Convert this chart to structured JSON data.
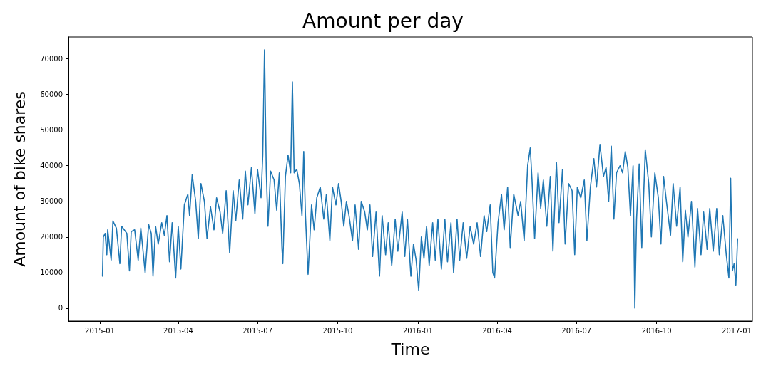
{
  "chart_data": {
    "type": "line",
    "title": "Amount per day",
    "xlabel": "Time",
    "ylabel": "Amount of bike shares",
    "x": [
      "2015-01-04",
      "2015-01-05",
      "2015-01-07",
      "2015-01-09",
      "2015-01-10",
      "2015-01-14",
      "2015-01-16",
      "2015-01-20",
      "2015-01-24",
      "2015-01-26",
      "2015-02-01",
      "2015-02-04",
      "2015-02-06",
      "2015-02-10",
      "2015-02-14",
      "2015-02-17",
      "2015-02-22",
      "2015-02-26",
      "2015-03-01",
      "2015-03-03",
      "2015-03-06",
      "2015-03-09",
      "2015-03-13",
      "2015-03-16",
      "2015-03-19",
      "2015-03-22",
      "2015-03-25",
      "2015-03-29",
      "2015-04-01",
      "2015-04-04",
      "2015-04-08",
      "2015-04-12",
      "2015-04-14",
      "2015-04-17",
      "2015-04-21",
      "2015-04-24",
      "2015-04-27",
      "2015-05-01",
      "2015-05-04",
      "2015-05-08",
      "2015-05-12",
      "2015-05-15",
      "2015-05-19",
      "2015-05-22",
      "2015-05-26",
      "2015-05-30",
      "2015-06-03",
      "2015-06-06",
      "2015-06-10",
      "2015-06-14",
      "2015-06-17",
      "2015-06-20",
      "2015-06-24",
      "2015-06-28",
      "2015-07-01",
      "2015-07-05",
      "2015-07-07",
      "2015-07-09",
      "2015-07-11",
      "2015-07-13",
      "2015-07-16",
      "2015-07-20",
      "2015-07-23",
      "2015-07-26",
      "2015-07-29",
      "2015-07-30",
      "2015-08-02",
      "2015-08-05",
      "2015-08-08",
      "2015-08-10",
      "2015-08-12",
      "2015-08-15",
      "2015-08-18",
      "2015-08-21",
      "2015-08-23",
      "2015-08-25",
      "2015-08-28",
      "2015-09-01",
      "2015-09-04",
      "2015-09-07",
      "2015-09-11",
      "2015-09-15",
      "2015-09-18",
      "2015-09-22",
      "2015-09-25",
      "2015-09-29",
      "2015-10-02",
      "2015-10-05",
      "2015-10-08",
      "2015-10-11",
      "2015-10-14",
      "2015-10-18",
      "2015-10-21",
      "2015-10-25",
      "2015-10-28",
      "2015-11-01",
      "2015-11-04",
      "2015-11-07",
      "2015-11-10",
      "2015-11-14",
      "2015-11-18",
      "2015-11-21",
      "2015-11-25",
      "2015-11-28",
      "2015-12-02",
      "2015-12-06",
      "2015-12-09",
      "2015-12-14",
      "2015-12-17",
      "2015-12-20",
      "2015-12-24",
      "2015-12-27",
      "2015-12-30",
      "2016-01-02",
      "2016-01-05",
      "2016-01-08",
      "2016-01-11",
      "2016-01-14",
      "2016-01-18",
      "2016-01-21",
      "2016-01-24",
      "2016-01-28",
      "2016-02-01",
      "2016-02-04",
      "2016-02-08",
      "2016-02-11",
      "2016-02-15",
      "2016-02-18",
      "2016-02-22",
      "2016-02-26",
      "2016-03-01",
      "2016-03-05",
      "2016-03-09",
      "2016-03-13",
      "2016-03-17",
      "2016-03-20",
      "2016-03-24",
      "2016-03-27",
      "2016-03-29",
      "2016-04-02",
      "2016-04-06",
      "2016-04-09",
      "2016-04-13",
      "2016-04-16",
      "2016-04-20",
      "2016-04-25",
      "2016-04-28",
      "2016-05-02",
      "2016-05-06",
      "2016-05-09",
      "2016-05-11",
      "2016-05-14",
      "2016-05-18",
      "2016-05-21",
      "2016-05-24",
      "2016-05-28",
      "2016-06-01",
      "2016-06-04",
      "2016-06-08",
      "2016-06-11",
      "2016-06-15",
      "2016-06-18",
      "2016-06-22",
      "2016-06-26",
      "2016-06-29",
      "2016-07-02",
      "2016-07-06",
      "2016-07-10",
      "2016-07-13",
      "2016-07-17",
      "2016-07-21",
      "2016-07-24",
      "2016-07-28",
      "2016-08-01",
      "2016-08-04",
      "2016-08-07",
      "2016-08-10",
      "2016-08-13",
      "2016-08-16",
      "2016-08-20",
      "2016-08-23",
      "2016-08-26",
      "2016-08-29",
      "2016-09-01",
      "2016-09-04",
      "2016-09-06",
      "2016-09-08",
      "2016-09-11",
      "2016-09-14",
      "2016-09-18",
      "2016-09-22",
      "2016-09-25",
      "2016-09-29",
      "2016-10-03",
      "2016-10-06",
      "2016-10-09",
      "2016-10-13",
      "2016-10-17",
      "2016-10-20",
      "2016-10-24",
      "2016-10-28",
      "2016-10-31",
      "2016-11-03",
      "2016-11-06",
      "2016-11-10",
      "2016-11-14",
      "2016-11-17",
      "2016-11-21",
      "2016-11-24",
      "2016-11-28",
      "2016-12-01",
      "2016-12-05",
      "2016-12-09",
      "2016-12-12",
      "2016-12-16",
      "2016-12-20",
      "2016-12-23",
      "2016-12-25",
      "2016-12-27",
      "2016-12-29",
      "2016-12-31",
      "2017-01-02"
    ],
    "series": [
      {
        "color": "#1f77b4",
        "values": [
          9000,
          20000,
          21000,
          15000,
          22000,
          13500,
          24500,
          22500,
          12500,
          23000,
          21000,
          10500,
          21500,
          22000,
          13500,
          22500,
          10000,
          23500,
          21000,
          9000,
          23000,
          18000,
          24000,
          20500,
          26000,
          13000,
          24000,
          8500,
          23000,
          11000,
          29000,
          32000,
          26000,
          37500,
          30000,
          19500,
          35000,
          30000,
          19500,
          28500,
          22000,
          31000,
          27000,
          21000,
          33000,
          15500,
          33000,
          24500,
          36000,
          25000,
          38500,
          29000,
          39500,
          26500,
          39000,
          31000,
          43000,
          72500,
          39000,
          23000,
          38500,
          36000,
          27500,
          38000,
          17000,
          12500,
          37000,
          43000,
          38000,
          63500,
          38000,
          39000,
          35000,
          26000,
          44000,
          26000,
          9500,
          29000,
          22000,
          31000,
          34000,
          25000,
          32000,
          19000,
          34000,
          29000,
          35000,
          30000,
          23000,
          30000,
          26000,
          19000,
          29000,
          16500,
          30000,
          27000,
          22000,
          29000,
          14500,
          27000,
          9000,
          26000,
          15000,
          24000,
          12000,
          25000,
          16000,
          27000,
          14500,
          25000,
          9000,
          18000,
          13500,
          5000,
          20000,
          14000,
          23000,
          12000,
          24000,
          13500,
          25000,
          11000,
          25000,
          13000,
          24000,
          10000,
          25000,
          13500,
          24000,
          14000,
          23000,
          18000,
          24000,
          14500,
          26000,
          21500,
          29000,
          10000,
          8500,
          24000,
          32000,
          22000,
          34000,
          17000,
          32000,
          26000,
          30000,
          19000,
          40000,
          45000,
          36000,
          19500,
          38000,
          28000,
          36000,
          23000,
          37000,
          16000,
          41000,
          24000,
          39000,
          18000,
          35000,
          33000,
          15000,
          34000,
          31000,
          36000,
          19000,
          34000,
          42000,
          34000,
          46000,
          37000,
          39500,
          30000,
          45500,
          25000,
          38000,
          40000,
          38000,
          44000,
          39500,
          26000,
          40000,
          0,
          25000,
          40500,
          17000,
          44500,
          35000,
          20000,
          38000,
          31000,
          18000,
          37000,
          28500,
          20500,
          35000,
          23000,
          34000,
          13000,
          27500,
          20000,
          30000,
          11500,
          28000,
          15000,
          27000,
          16500,
          28000,
          16000,
          28000,
          15000,
          26000,
          15000,
          8500,
          36500,
          10500,
          12500,
          6500,
          19500
        ]
      }
    ],
    "xlim": [
      "2014-11-26",
      "2017-01-19"
    ],
    "xticks": [
      {
        "value": "2015-01-01",
        "label": "2015-01"
      },
      {
        "value": "2015-04-01",
        "label": "2015-04"
      },
      {
        "value": "2015-07-01",
        "label": "2015-07"
      },
      {
        "value": "2015-10-01",
        "label": "2015-10"
      },
      {
        "value": "2016-01-01",
        "label": "2016-01"
      },
      {
        "value": "2016-04-01",
        "label": "2016-04"
      },
      {
        "value": "2016-07-01",
        "label": "2016-07"
      },
      {
        "value": "2016-10-01",
        "label": "2016-10"
      },
      {
        "value": "2017-01-01",
        "label": "2017-01"
      }
    ],
    "ylim": [
      -3625,
      76125
    ],
    "yticks": [
      0,
      10000,
      20000,
      30000,
      40000,
      50000,
      60000,
      70000
    ],
    "marker": "none",
    "line_style": "solid"
  }
}
